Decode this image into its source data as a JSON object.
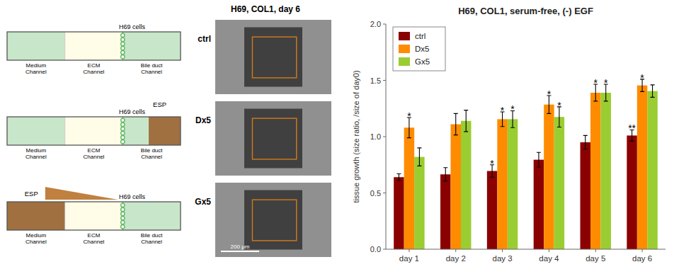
{
  "chart_data": {
    "type": "bar",
    "title": "H69, COL1, serum-free, (-) EGF",
    "categories": [
      "day 1",
      "day 2",
      "day 3",
      "day 4",
      "day 5",
      "day 6"
    ],
    "series": [
      {
        "name": "ctrl",
        "color": "#8B0000",
        "values": [
          0.64,
          0.665,
          0.695,
          0.795,
          0.95,
          1.01
        ],
        "errors": [
          0.03,
          0.06,
          0.055,
          0.065,
          0.06,
          0.05
        ],
        "significance": [
          null,
          null,
          "*",
          null,
          null,
          "**"
        ]
      },
      {
        "name": "Dx5",
        "color": "#FF8C00",
        "values": [
          1.08,
          1.11,
          1.155,
          1.285,
          1.39,
          1.455
        ],
        "errors": [
          0.09,
          0.095,
          0.065,
          0.08,
          0.075,
          0.055
        ],
        "significance": [
          "*",
          null,
          "*",
          "*",
          "*",
          "*"
        ]
      },
      {
        "name": "Gx5",
        "color": "#9ACD32",
        "values": [
          0.82,
          1.14,
          1.155,
          1.175,
          1.39,
          1.405
        ],
        "errors": [
          0.08,
          0.095,
          0.075,
          0.09,
          0.075,
          0.055
        ],
        "significance": [
          null,
          null,
          "*",
          "*",
          "*",
          null
        ]
      }
    ],
    "y_label": "tissue growth (size ratio, /size of day0)",
    "ylim": [
      0,
      2.0
    ],
    "yticks": [
      {
        "value": 0,
        "label": "0.0"
      },
      0.5,
      {
        "value": 1.0,
        "label": "1.0"
      },
      1.5,
      {
        "value": 2.0,
        "label": "2.0"
      }
    ],
    "grid": false,
    "legend": "upper left",
    "annotations": [
      "H69, COL1, day 6",
      "H69 cells",
      "H69 cells",
      "H69 cells",
      "ESP",
      "ESP",
      "Medium\nChannel",
      "ECM\nChannel",
      "Bile duct\nChannel",
      "Medium\nChannel",
      "ECM\nChannel",
      "Bile duct\nChannel",
      "Medium\nChannel",
      "ECM\nChannel",
      "Bile duct\nChannel",
      "ctrl",
      "Dx5",
      "Gx5",
      "200 μm"
    ]
  }
}
